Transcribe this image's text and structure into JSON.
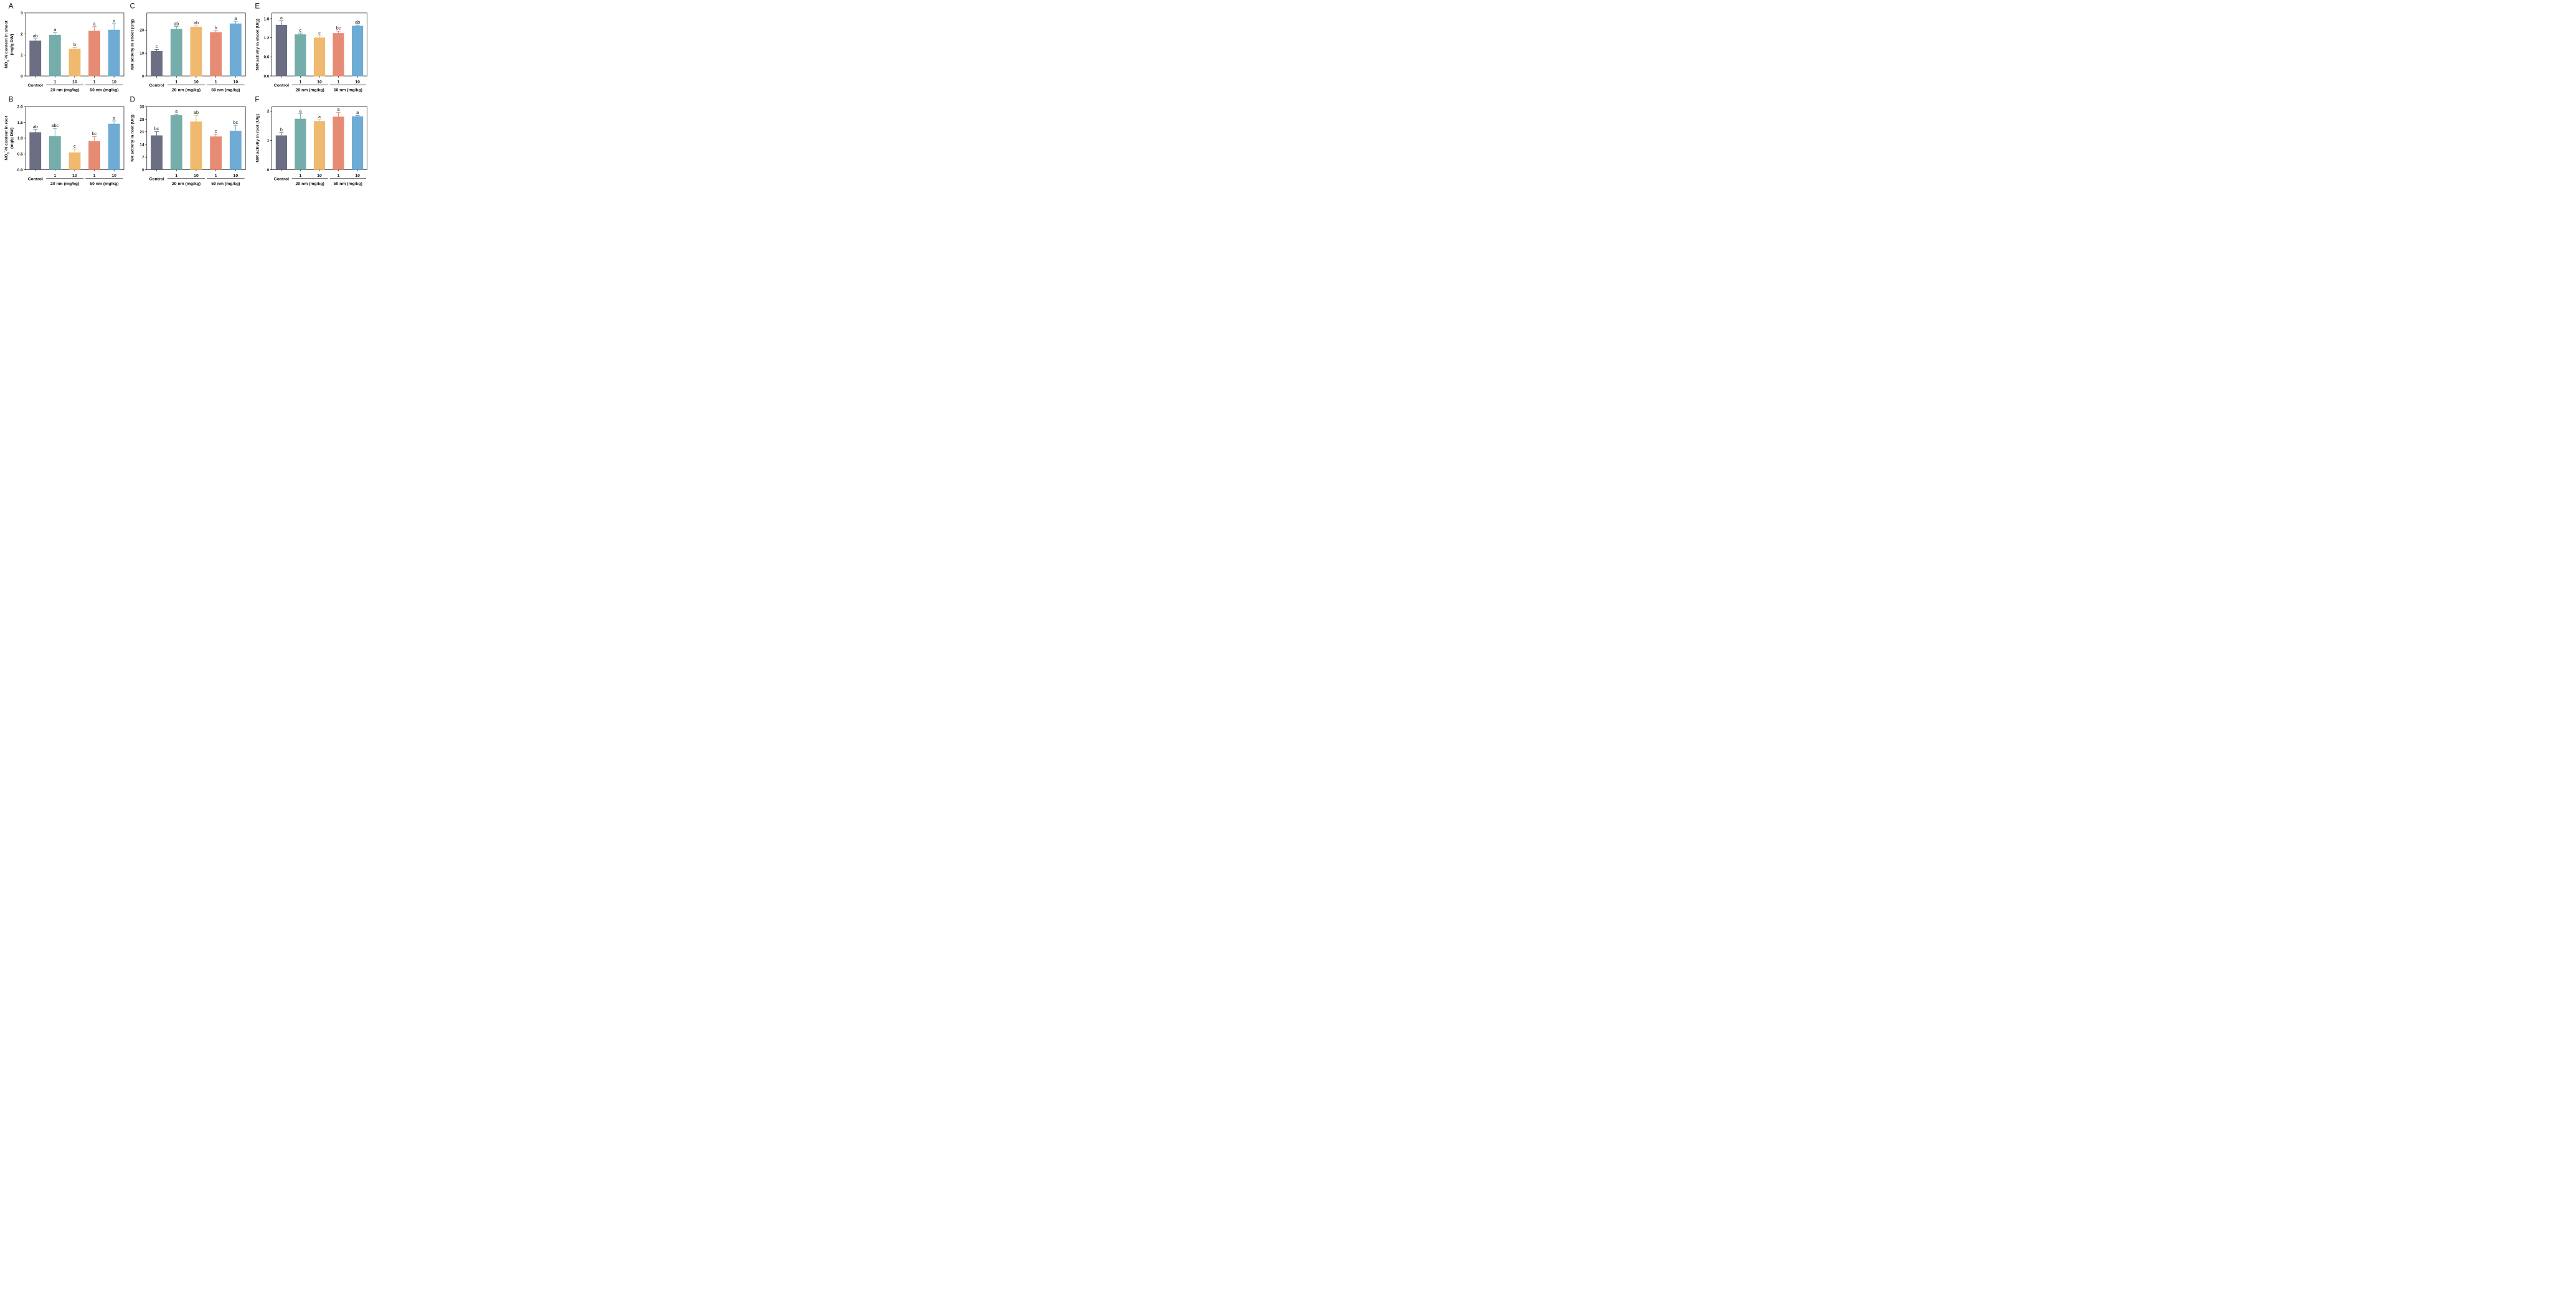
{
  "colors": {
    "Control": "#676a80",
    "20 nm 1": "#70aaa6",
    "20 nm 10": "#eeb86a",
    "50 nm 1": "#e58870",
    "50 nm 10": "#6aa9d4"
  },
  "chart_data": [
    {
      "type": "bar",
      "panel": "A",
      "ylabel_parts": [
        "NO",
        "3",
        "-",
        "-N content in shoot"
      ],
      "ylabel_unit": "(mg/g DW)",
      "ylim": [
        0,
        3
      ],
      "yticks": [
        "0",
        "1",
        "2",
        "3"
      ],
      "categories": [
        "Control",
        "1",
        "10",
        "1",
        "10"
      ],
      "groups": [
        "20 nm (mg/kg)",
        "50 nm (mg/kg)"
      ],
      "values": [
        1.67,
        1.95,
        1.28,
        2.14,
        2.19
      ],
      "errors": [
        0.1,
        0.12,
        0.07,
        0.21,
        0.3
      ],
      "letters": [
        "ab",
        "a",
        "b",
        "a",
        "a"
      ]
    },
    {
      "type": "bar",
      "panel": "B",
      "ylabel_parts": [
        "NO",
        "3",
        "-",
        "-N content in root"
      ],
      "ylabel_unit": "(mg/g DW)",
      "ylim": [
        0,
        2.0
      ],
      "yticks": [
        "0.0",
        "0.5",
        "1.0",
        "1.5",
        "2.0"
      ],
      "categories": [
        "Control",
        "1",
        "10",
        "1",
        "10"
      ],
      "groups": [
        "20 nm (mg/kg)",
        "50 nm (mg/kg)"
      ],
      "values": [
        1.18,
        1.06,
        0.54,
        0.9,
        1.45
      ],
      "errors": [
        0.09,
        0.25,
        0.12,
        0.15,
        0.1
      ],
      "letters": [
        "ab",
        "abc",
        "c",
        "bc",
        "a"
      ]
    },
    {
      "type": "bar",
      "panel": "C",
      "ylabel_parts": [
        "NR activity in shoot (U/g)"
      ],
      "ylim": [
        0,
        27.5
      ],
      "yticks": [
        "0",
        "10",
        "20"
      ],
      "categories": [
        "Control",
        "1",
        "10",
        "1",
        "10"
      ],
      "groups": [
        "20 nm (mg/kg)",
        "50 nm (mg/kg)"
      ],
      "values": [
        10.8,
        20.4,
        21.4,
        19.0,
        22.8
      ],
      "errors": [
        0.8,
        1.2,
        0.6,
        0.8,
        1.1
      ],
      "letters": [
        "c",
        "ab",
        "ab",
        "b",
        "a"
      ]
    },
    {
      "type": "bar",
      "panel": "D",
      "ylabel_parts": [
        "NR activity in root (U/g)"
      ],
      "ylim": [
        0,
        35
      ],
      "yticks": [
        "0",
        "7",
        "14",
        "21",
        "28",
        "35"
      ],
      "categories": [
        "Control",
        "1",
        "10",
        "1",
        "10"
      ],
      "groups": [
        "20 nm (mg/kg)",
        "50 nm (mg/kg)"
      ],
      "values": [
        18.9,
        30.1,
        26.6,
        18.3,
        21.5
      ],
      "errors": [
        2.2,
        0.7,
        3.6,
        1.5,
        3.2
      ],
      "letters": [
        "bc",
        "a",
        "ab",
        "c",
        "bc"
      ]
    },
    {
      "type": "bar",
      "panel": "E",
      "ylabel_parts": [
        "NiR activity in shoot (U/g)"
      ],
      "ylim": [
        0,
        1.98
      ],
      "yticks": [
        "0.0",
        "0.6",
        "1.2",
        "1.8"
      ],
      "categories": [
        "Control",
        "1",
        "10",
        "1",
        "10"
      ],
      "groups": [
        "20 nm (mg/kg)",
        "50 nm (mg/kg)"
      ],
      "values": [
        1.6,
        1.3,
        1.2,
        1.34,
        1.57
      ],
      "errors": [
        0.14,
        0.05,
        0.06,
        0.07,
        0.03
      ],
      "letters": [
        "a",
        "c",
        "c",
        "bc",
        "ab"
      ]
    },
    {
      "type": "bar",
      "panel": "F",
      "ylabel_parts": [
        "NiR activity in root (U/g)"
      ],
      "ylim": [
        0,
        2.15
      ],
      "yticks": [
        "0",
        "1",
        "2"
      ],
      "categories": [
        "Control",
        "1",
        "10",
        "1",
        "10"
      ],
      "groups": [
        "20 nm (mg/kg)",
        "50 nm (mg/kg)"
      ],
      "values": [
        1.16,
        1.73,
        1.65,
        1.8,
        1.81
      ],
      "errors": [
        0.11,
        0.18,
        0.06,
        0.16,
        0.04
      ],
      "letters": [
        "b",
        "a",
        "a",
        "a",
        "a"
      ]
    }
  ]
}
